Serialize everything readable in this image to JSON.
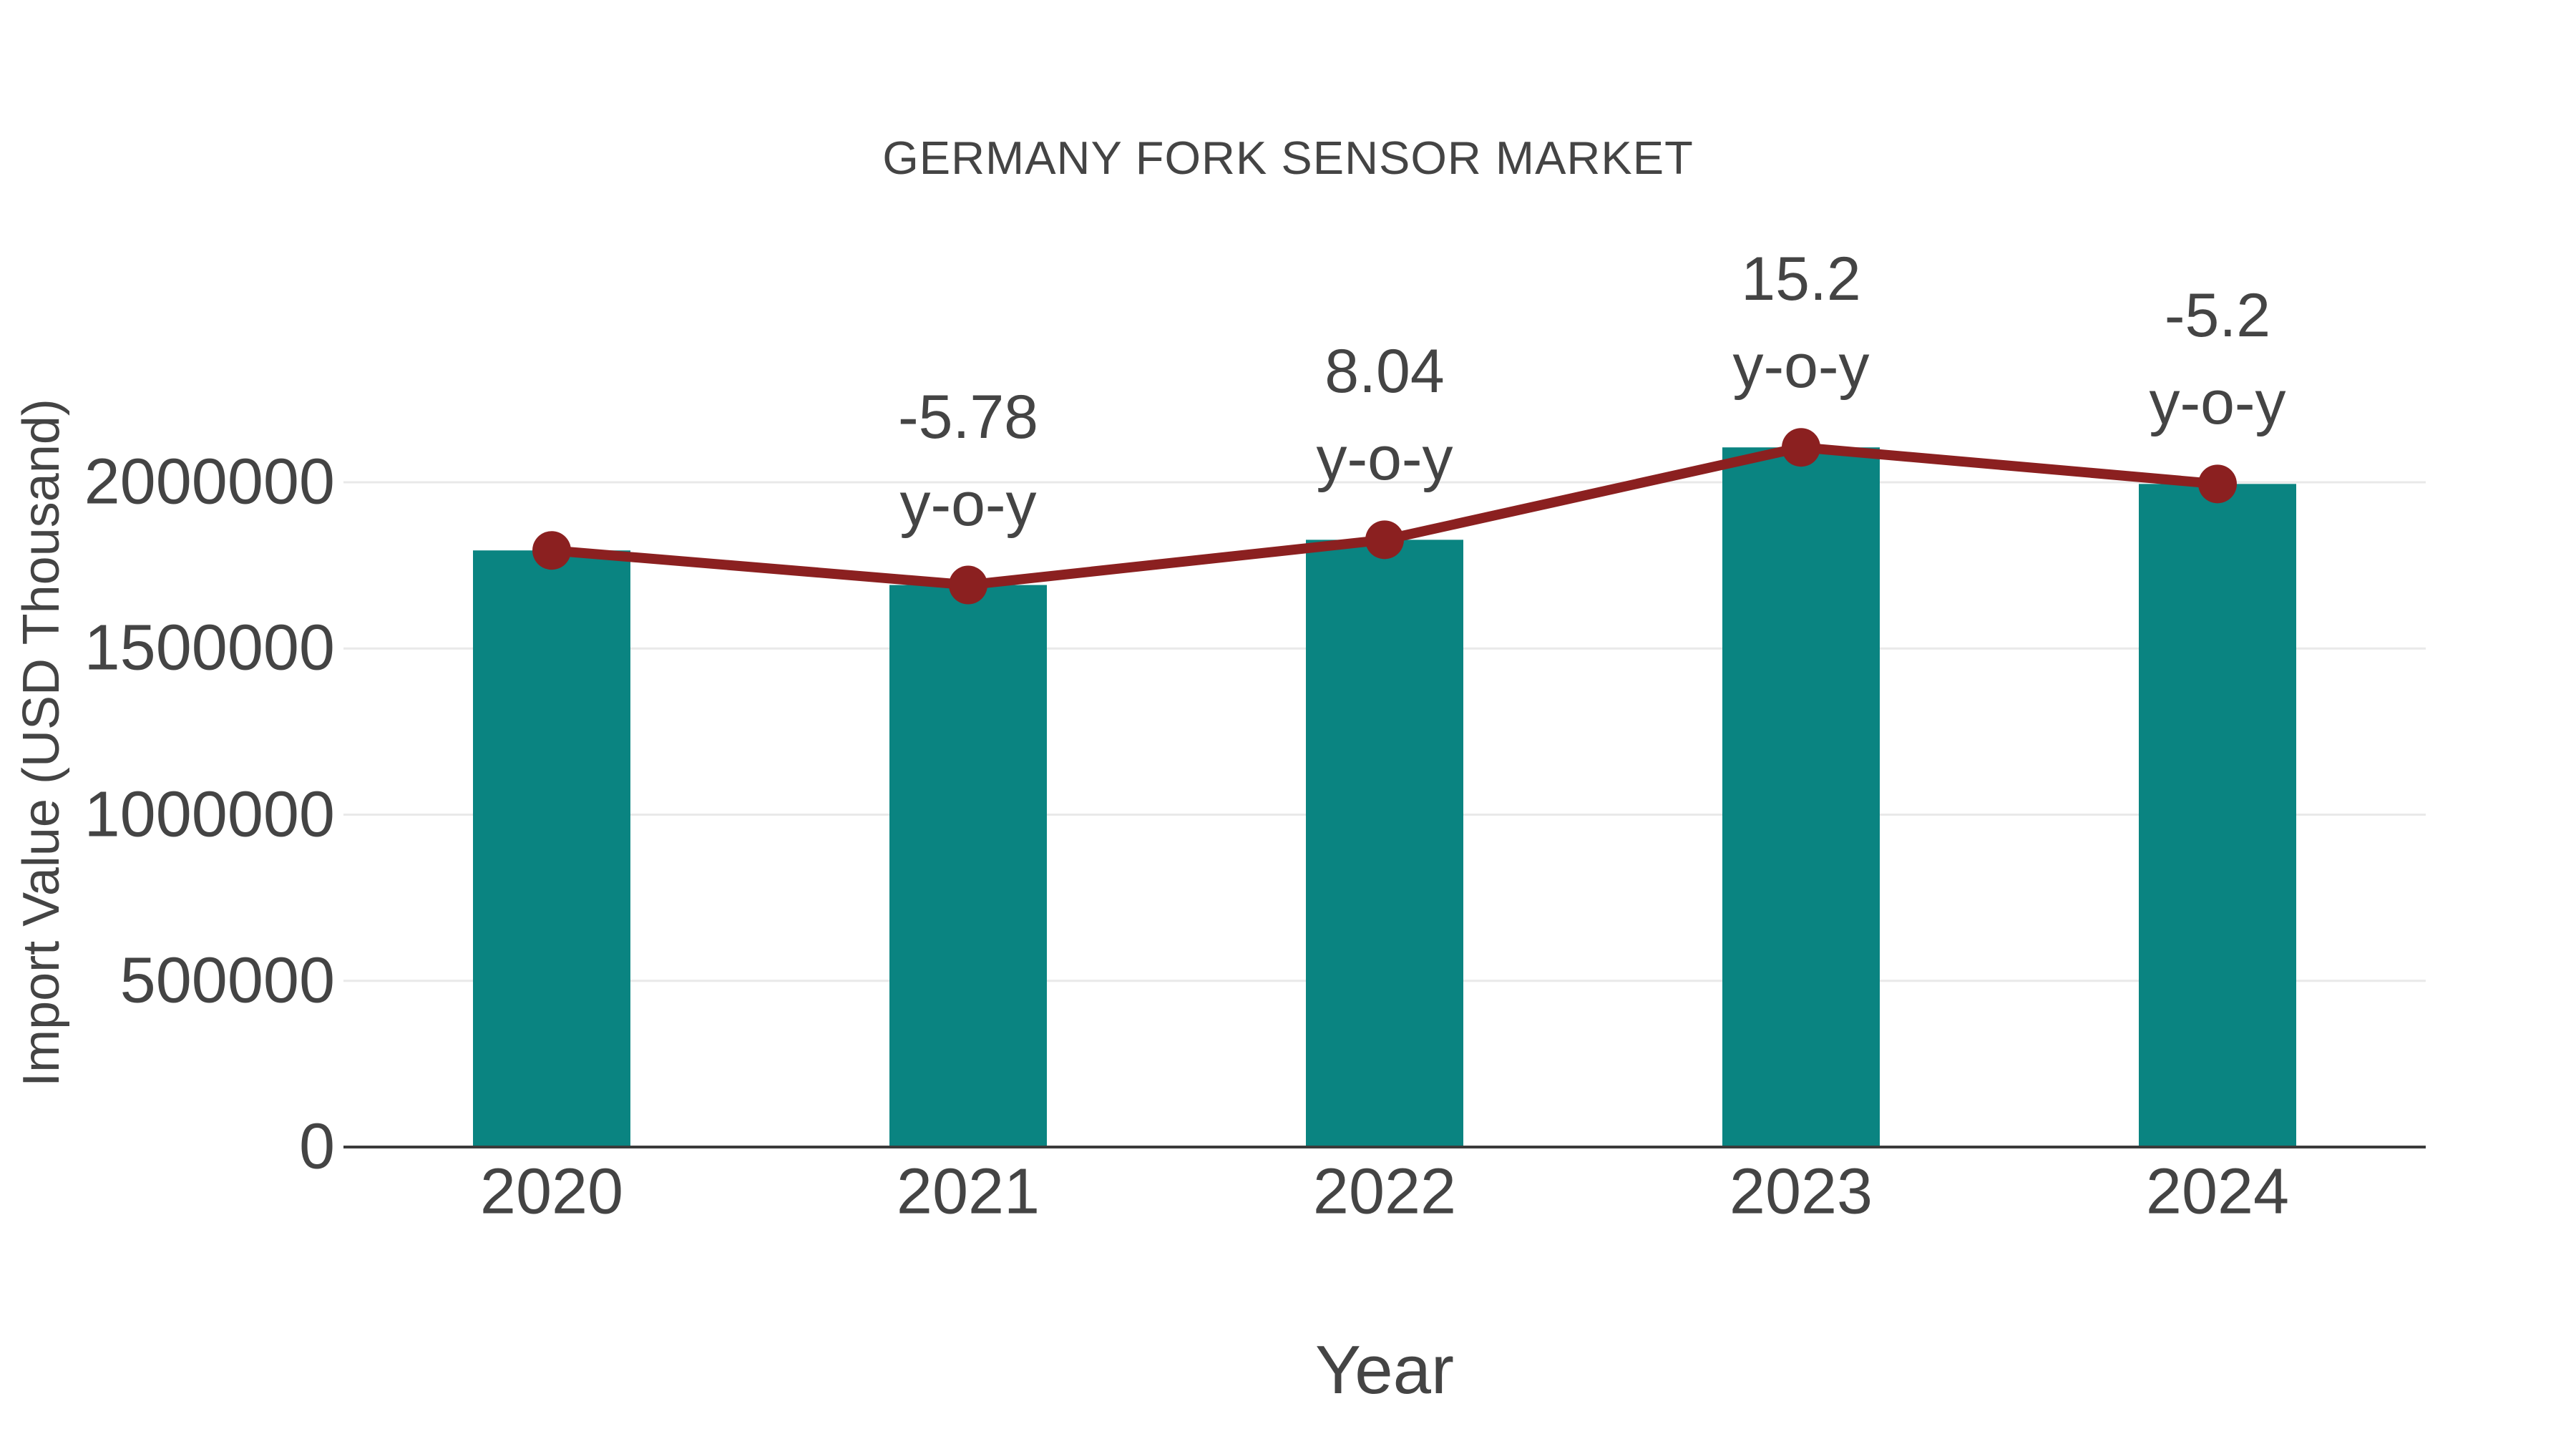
{
  "chart_data": {
    "type": "bar",
    "title": "GERMANY FORK SENSOR MARKET",
    "xlabel": "Year",
    "ylabel": "Import Value (USD Thousand)",
    "categories": [
      "2020",
      "2021",
      "2022",
      "2023",
      "2024"
    ],
    "series": [
      {
        "name": "Import Value (USD Thousand)",
        "type": "bar",
        "values": [
          1795000,
          1691000,
          1827000,
          2105000,
          1995000
        ]
      },
      {
        "name": "y-o-y growth (%)",
        "type": "line",
        "note": "line traces the bar-top values; labels show y-o-y % change",
        "yoy_percent": [
          null,
          -5.78,
          8.04,
          15.2,
          -5.2
        ]
      }
    ],
    "annotations": [
      {
        "category": "2021",
        "line1": "-5.78",
        "line2": "y-o-y"
      },
      {
        "category": "2022",
        "line1": "8.04",
        "line2": "y-o-y"
      },
      {
        "category": "2023",
        "line1": "15.2",
        "line2": "y-o-y"
      },
      {
        "category": "2024",
        "line1": "-5.2",
        "line2": "y-o-y"
      }
    ],
    "yticks": [
      0,
      500000,
      1000000,
      1500000,
      2000000
    ],
    "ylim": [
      0,
      2150000
    ],
    "grid": true,
    "legend": "none",
    "colors": {
      "bar": "#0A8481",
      "line": "#8B2020",
      "text": "#444444",
      "grid": "#E9E9E9",
      "axis": "#3B3B3B",
      "background": "#FFFFFF"
    }
  }
}
